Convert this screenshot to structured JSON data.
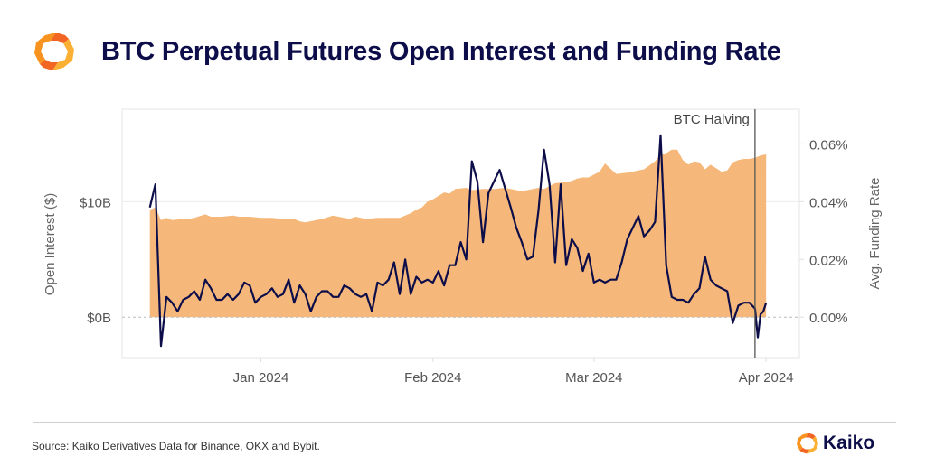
{
  "header": {
    "title": "BTC Perpetual Futures Open Interest and Funding Rate",
    "logo": "kaiko-logo-icon"
  },
  "footer": {
    "source": "Source: Kaiko Derivatives Data for Binance, OKX and Bybit.",
    "brand": "Kaiko"
  },
  "colors": {
    "area": "#f5b87a",
    "line": "#0d0d4a",
    "title": "#0d0d4a",
    "axis_text": "#555555",
    "event_line": "#555555"
  },
  "chart_data": {
    "type": "area",
    "title": "BTC Perpetual Futures Open Interest and Funding Rate",
    "ylabel_left": "Open Interest ($)",
    "ylabel_right": "Avg. Funding Rate",
    "left_ticks": [
      {
        "value": 0,
        "label": "$0B"
      },
      {
        "value": 10,
        "label": "$10B"
      }
    ],
    "right_ticks": [
      {
        "value": 0.0,
        "label": "0.00%"
      },
      {
        "value": 0.02,
        "label": "0.02%"
      },
      {
        "value": 0.04,
        "label": "0.04%"
      },
      {
        "value": 0.06,
        "label": "0.06%"
      }
    ],
    "x_ticks": [
      {
        "date": "2024-01-01",
        "label": "Jan 2024"
      },
      {
        "date": "2024-02-01",
        "label": "Feb 2024"
      },
      {
        "date": "2024-03-01",
        "label": "Mar 2024"
      },
      {
        "date": "2024-04-01",
        "label": "Apr 2024"
      }
    ],
    "left_ylim": [
      -3.5,
      18
    ],
    "right_ylim": [
      -0.014,
      0.072
    ],
    "xlim": [
      "2023-12-07",
      "2024-04-07"
    ],
    "annotation": {
      "date": "2024-03-30",
      "label": "BTC Halving"
    },
    "series": [
      {
        "name": "Open Interest ($B)",
        "axis": "left",
        "kind": "area",
        "points": [
          [
            "2023-12-12",
            9.3
          ],
          [
            "2023-12-13",
            9.5
          ],
          [
            "2023-12-14",
            8.4
          ],
          [
            "2023-12-15",
            8.6
          ],
          [
            "2023-12-16",
            8.4
          ],
          [
            "2023-12-18",
            8.5
          ],
          [
            "2023-12-19",
            8.5
          ],
          [
            "2023-12-20",
            8.6
          ],
          [
            "2023-12-22",
            8.9
          ],
          [
            "2023-12-23",
            8.7
          ],
          [
            "2023-12-25",
            8.7
          ],
          [
            "2023-12-27",
            8.8
          ],
          [
            "2023-12-28",
            8.7
          ],
          [
            "2023-12-30",
            8.7
          ],
          [
            "2024-01-01",
            8.6
          ],
          [
            "2024-01-03",
            8.6
          ],
          [
            "2024-01-05",
            8.5
          ],
          [
            "2024-01-07",
            8.5
          ],
          [
            "2024-01-08",
            8.3
          ],
          [
            "2024-01-09",
            8.2
          ],
          [
            "2024-01-11",
            8.4
          ],
          [
            "2024-01-12",
            8.5
          ],
          [
            "2024-01-14",
            8.8
          ],
          [
            "2024-01-16",
            8.6
          ],
          [
            "2024-01-17",
            8.5
          ],
          [
            "2024-01-18",
            8.7
          ],
          [
            "2024-01-20",
            8.5
          ],
          [
            "2024-01-22",
            8.6
          ],
          [
            "2024-01-24",
            8.6
          ],
          [
            "2024-01-26",
            8.6
          ],
          [
            "2024-01-28",
            9.0
          ],
          [
            "2024-01-29",
            9.3
          ],
          [
            "2024-01-30",
            9.5
          ],
          [
            "2024-01-31",
            10.0
          ],
          [
            "2024-02-01",
            10.2
          ],
          [
            "2024-02-03",
            10.8
          ],
          [
            "2024-02-04",
            10.7
          ],
          [
            "2024-02-05",
            11.1
          ],
          [
            "2024-02-07",
            11.2
          ],
          [
            "2024-02-08",
            11.0
          ],
          [
            "2024-02-10",
            11.1
          ],
          [
            "2024-02-12",
            11.1
          ],
          [
            "2024-02-14",
            11.2
          ],
          [
            "2024-02-16",
            11.0
          ],
          [
            "2024-02-17",
            10.9
          ],
          [
            "2024-02-19",
            11.1
          ],
          [
            "2024-02-20",
            11.2
          ],
          [
            "2024-02-21",
            11.1
          ],
          [
            "2024-02-23",
            11.6
          ],
          [
            "2024-02-25",
            11.7
          ],
          [
            "2024-02-26",
            11.8
          ],
          [
            "2024-02-27",
            12.0
          ],
          [
            "2024-02-28",
            12.1
          ],
          [
            "2024-02-29",
            12.1
          ],
          [
            "2024-03-02",
            12.6
          ],
          [
            "2024-03-03",
            13.3
          ],
          [
            "2024-03-05",
            12.4
          ],
          [
            "2024-03-07",
            12.5
          ],
          [
            "2024-03-09",
            12.7
          ],
          [
            "2024-03-10",
            12.8
          ],
          [
            "2024-03-12",
            13.5
          ],
          [
            "2024-03-13",
            14.1
          ],
          [
            "2024-03-14",
            14.2
          ],
          [
            "2024-03-15",
            14.5
          ],
          [
            "2024-03-16",
            14.5
          ],
          [
            "2024-03-17",
            13.6
          ],
          [
            "2024-03-18",
            13.2
          ],
          [
            "2024-03-19",
            13.5
          ],
          [
            "2024-03-20",
            13.4
          ],
          [
            "2024-03-21",
            12.8
          ],
          [
            "2024-03-22",
            13.2
          ],
          [
            "2024-03-23",
            12.9
          ],
          [
            "2024-03-24",
            12.6
          ],
          [
            "2024-03-25",
            12.7
          ],
          [
            "2024-03-26",
            13.4
          ],
          [
            "2024-03-27",
            13.6
          ],
          [
            "2024-03-28",
            13.7
          ],
          [
            "2024-03-29",
            13.7
          ],
          [
            "2024-03-30",
            13.8
          ],
          [
            "2024-03-31",
            14.0
          ],
          [
            "2024-04-01",
            14.1
          ]
        ]
      },
      {
        "name": "Avg. Funding Rate (%)",
        "axis": "right",
        "kind": "line",
        "points": [
          [
            "2023-12-12",
            0.038
          ],
          [
            "2023-12-13",
            0.046
          ],
          [
            "2023-12-14",
            -0.01
          ],
          [
            "2023-12-15",
            0.007
          ],
          [
            "2023-12-16",
            0.005
          ],
          [
            "2023-12-17",
            0.002
          ],
          [
            "2023-12-18",
            0.006
          ],
          [
            "2023-12-19",
            0.007
          ],
          [
            "2023-12-20",
            0.009
          ],
          [
            "2023-12-21",
            0.006
          ],
          [
            "2023-12-22",
            0.013
          ],
          [
            "2023-12-23",
            0.01
          ],
          [
            "2023-12-24",
            0.006
          ],
          [
            "2023-12-25",
            0.006
          ],
          [
            "2023-12-26",
            0.008
          ],
          [
            "2023-12-27",
            0.006
          ],
          [
            "2023-12-28",
            0.008
          ],
          [
            "2023-12-29",
            0.012
          ],
          [
            "2023-12-30",
            0.011
          ],
          [
            "2023-12-31",
            0.005
          ],
          [
            "2024-01-01",
            0.007
          ],
          [
            "2024-01-02",
            0.008
          ],
          [
            "2024-01-03",
            0.01
          ],
          [
            "2024-01-04",
            0.007
          ],
          [
            "2024-01-05",
            0.008
          ],
          [
            "2024-01-06",
            0.013
          ],
          [
            "2024-01-07",
            0.005
          ],
          [
            "2024-01-08",
            0.011
          ],
          [
            "2024-01-09",
            0.008
          ],
          [
            "2024-01-10",
            0.002
          ],
          [
            "2024-01-11",
            0.007
          ],
          [
            "2024-01-12",
            0.009
          ],
          [
            "2024-01-13",
            0.009
          ],
          [
            "2024-01-14",
            0.007
          ],
          [
            "2024-01-15",
            0.007
          ],
          [
            "2024-01-16",
            0.011
          ],
          [
            "2024-01-17",
            0.01
          ],
          [
            "2024-01-18",
            0.008
          ],
          [
            "2024-01-19",
            0.007
          ],
          [
            "2024-01-20",
            0.008
          ],
          [
            "2024-01-21",
            0.002
          ],
          [
            "2024-01-22",
            0.012
          ],
          [
            "2024-01-23",
            0.011
          ],
          [
            "2024-01-24",
            0.013
          ],
          [
            "2024-01-25",
            0.019
          ],
          [
            "2024-01-26",
            0.008
          ],
          [
            "2024-01-27",
            0.02
          ],
          [
            "2024-01-28",
            0.008
          ],
          [
            "2024-01-29",
            0.014
          ],
          [
            "2024-01-30",
            0.012
          ],
          [
            "2024-01-31",
            0.013
          ],
          [
            "2024-02-01",
            0.012
          ],
          [
            "2024-02-02",
            0.016
          ],
          [
            "2024-02-03",
            0.011
          ],
          [
            "2024-02-04",
            0.018
          ],
          [
            "2024-02-05",
            0.018
          ],
          [
            "2024-02-06",
            0.026
          ],
          [
            "2024-02-07",
            0.02
          ],
          [
            "2024-02-08",
            0.054
          ],
          [
            "2024-02-09",
            0.047
          ],
          [
            "2024-02-10",
            0.026
          ],
          [
            "2024-02-11",
            0.043
          ],
          [
            "2024-02-12",
            0.047
          ],
          [
            "2024-02-13",
            0.051
          ],
          [
            "2024-02-15",
            0.038
          ],
          [
            "2024-02-16",
            0.031
          ],
          [
            "2024-02-17",
            0.026
          ],
          [
            "2024-02-18",
            0.02
          ],
          [
            "2024-02-19",
            0.021
          ],
          [
            "2024-02-20",
            0.037
          ],
          [
            "2024-02-21",
            0.058
          ],
          [
            "2024-02-22",
            0.046
          ],
          [
            "2024-02-23",
            0.019
          ],
          [
            "2024-02-24",
            0.046
          ],
          [
            "2024-02-25",
            0.018
          ],
          [
            "2024-02-26",
            0.027
          ],
          [
            "2024-02-27",
            0.024
          ],
          [
            "2024-02-28",
            0.016
          ],
          [
            "2024-02-29",
            0.022
          ],
          [
            "2024-03-01",
            0.012
          ],
          [
            "2024-03-02",
            0.013
          ],
          [
            "2024-03-03",
            0.012
          ],
          [
            "2024-03-04",
            0.013
          ],
          [
            "2024-03-05",
            0.013
          ],
          [
            "2024-03-06",
            0.019
          ],
          [
            "2024-03-07",
            0.027
          ],
          [
            "2024-03-08",
            0.031
          ],
          [
            "2024-03-09",
            0.035
          ],
          [
            "2024-03-10",
            0.028
          ],
          [
            "2024-03-11",
            0.03
          ],
          [
            "2024-03-12",
            0.033
          ],
          [
            "2024-03-13",
            0.063
          ],
          [
            "2024-03-14",
            0.018
          ],
          [
            "2024-03-15",
            0.007
          ],
          [
            "2024-03-16",
            0.006
          ],
          [
            "2024-03-17",
            0.006
          ],
          [
            "2024-03-18",
            0.005
          ],
          [
            "2024-03-19",
            0.008
          ],
          [
            "2024-03-20",
            0.01
          ],
          [
            "2024-03-21",
            0.021
          ],
          [
            "2024-03-22",
            0.013
          ],
          [
            "2024-03-23",
            0.011
          ],
          [
            "2024-03-24",
            0.01
          ],
          [
            "2024-03-25",
            0.009
          ],
          [
            "2024-03-26",
            -0.002
          ],
          [
            "2024-03-27",
            0.004
          ],
          [
            "2024-03-28",
            0.005
          ],
          [
            "2024-03-29",
            0.005
          ],
          [
            "2024-03-30",
            0.003
          ],
          [
            "2024-03-30T12",
            -0.007
          ],
          [
            "2024-03-31",
            0.001
          ],
          [
            "2024-03-31T12",
            0.002
          ],
          [
            "2024-04-01",
            0.005
          ]
        ]
      }
    ]
  }
}
